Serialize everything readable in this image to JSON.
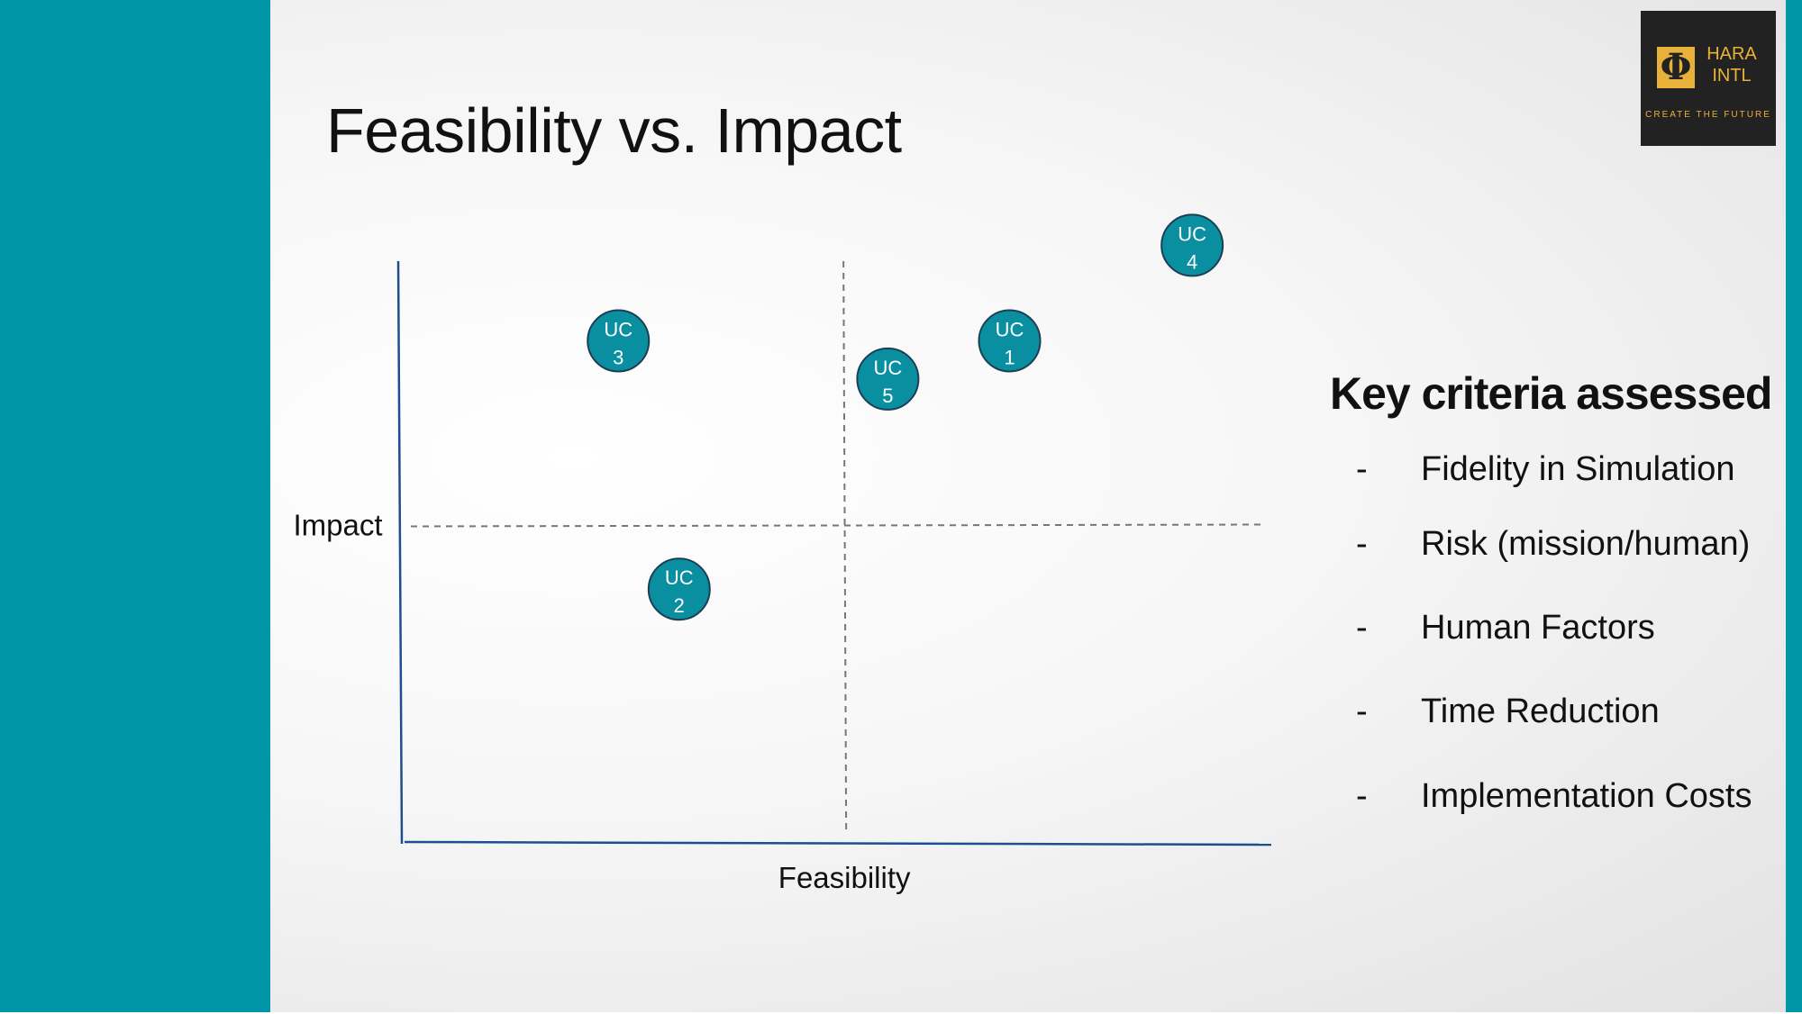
{
  "slide": {
    "title": "Feasibility vs. Impact",
    "accent_color": "#0096a8"
  },
  "logo": {
    "symbol": "Φ",
    "brand_line1": "HARA",
    "brand_line2": "INTL",
    "tagline": "CREATE THE FUTURE"
  },
  "chart_data": {
    "type": "scatter",
    "xlabel": "Feasibility",
    "ylabel": "Impact",
    "xlim": [
      0,
      100
    ],
    "ylim": [
      0,
      100
    ],
    "quadrant_split": {
      "x": 51,
      "y": 50
    },
    "grid": false,
    "point_color": "#0a8fa0",
    "points": [
      {
        "label": [
          "UC",
          "1"
        ],
        "x": 70,
        "y": 79
      },
      {
        "label": [
          "UC",
          "2"
        ],
        "x": 32,
        "y": 40
      },
      {
        "label": [
          "UC",
          "3"
        ],
        "x": 25,
        "y": 79
      },
      {
        "label": [
          "UC",
          "4"
        ],
        "x": 91,
        "y": 94
      },
      {
        "label": [
          "UC",
          "5"
        ],
        "x": 56,
        "y": 73
      }
    ]
  },
  "criteria": {
    "heading": "Key criteria assessed",
    "items": [
      {
        "dash": "-",
        "text": "Fidelity in Simulation"
      },
      {
        "dash": "-",
        "text": "Risk (mission/human)"
      },
      {
        "dash": "-",
        "text": "Human Factors"
      },
      {
        "dash": "-",
        "text": "Time Reduction"
      },
      {
        "dash": "-",
        "text": "Implementation  Costs"
      }
    ]
  }
}
